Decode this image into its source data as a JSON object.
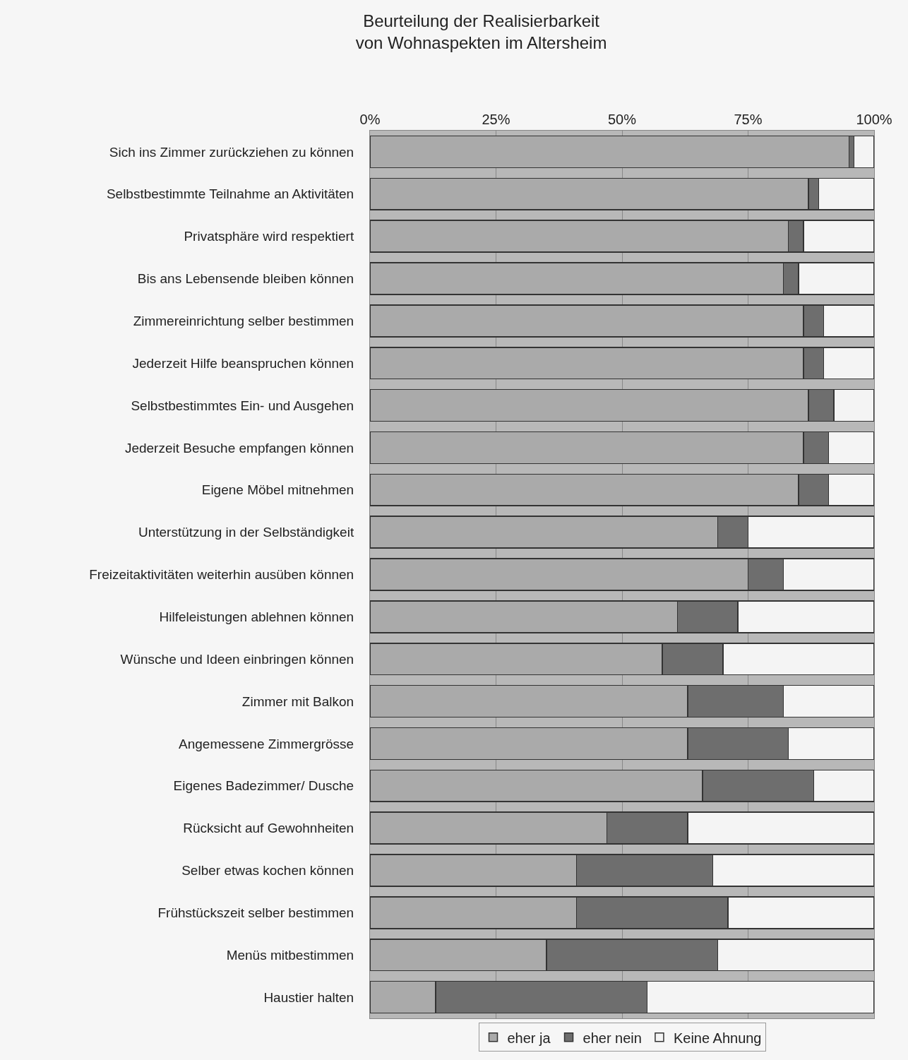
{
  "chart_data": {
    "type": "bar",
    "orientation": "horizontal",
    "stacked": true,
    "title": "Beurteilung der Realisierbarkeit\nvon Wohnaspekten im Altersheim",
    "categories": [
      "Sich ins Zimmer zurückziehen zu können",
      "Selbstbestimmte Teilnahme an Aktivitäten",
      "Privatsphäre wird respektiert",
      "Bis ans Lebensende bleiben können",
      "Zimmereinrichtung selber bestimmen",
      "Jederzeit Hilfe beanspruchen können",
      "Selbstbestimmtes Ein- und Ausgehen",
      "Jederzeit Besuche empfangen können",
      "Eigene Möbel mitnehmen",
      "Unterstützung in der Selbständigkeit",
      "Freizeitaktivitäten weiterhin ausüben können",
      "Hilfeleistungen ablehnen können",
      "Wünsche und Ideen einbringen können",
      "Zimmer mit Balkon",
      "Angemessene Zimmergrösse",
      "Eigenes Badezimmer/ Dusche",
      "Rücksicht auf Gewohnheiten",
      "Selber etwas kochen können",
      "Frühstückszeit selber bestimmen",
      "Menüs mitbestimmen",
      "Haustier halten"
    ],
    "series": [
      {
        "name": "eher ja",
        "color": "#aaaaaa",
        "values": [
          95,
          87,
          83,
          82,
          86,
          86,
          87,
          86,
          85,
          69,
          75,
          61,
          58,
          63,
          63,
          66,
          47,
          41,
          41,
          35,
          13
        ]
      },
      {
        "name": "eher nein",
        "color": "#6e6e6e",
        "values": [
          1,
          2,
          3,
          3,
          4,
          4,
          5,
          5,
          6,
          6,
          7,
          12,
          12,
          19,
          20,
          22,
          16,
          27,
          30,
          34,
          42
        ]
      },
      {
        "name": "Keine Ahnung",
        "color": "#f4f4f4",
        "values": [
          4,
          11,
          14,
          15,
          10,
          10,
          8,
          9,
          9,
          25,
          18,
          27,
          30,
          18,
          17,
          12,
          37,
          32,
          29,
          31,
          45
        ]
      }
    ],
    "xlim": [
      0,
      100
    ],
    "xticks": [
      {
        "value": 0,
        "label": "0%"
      },
      {
        "value": 25,
        "label": "25%"
      },
      {
        "value": 50,
        "label": "50%"
      },
      {
        "value": 75,
        "label": "75%"
      },
      {
        "value": 100,
        "label": "100%"
      }
    ],
    "grid": "x",
    "legend": "bottom"
  }
}
